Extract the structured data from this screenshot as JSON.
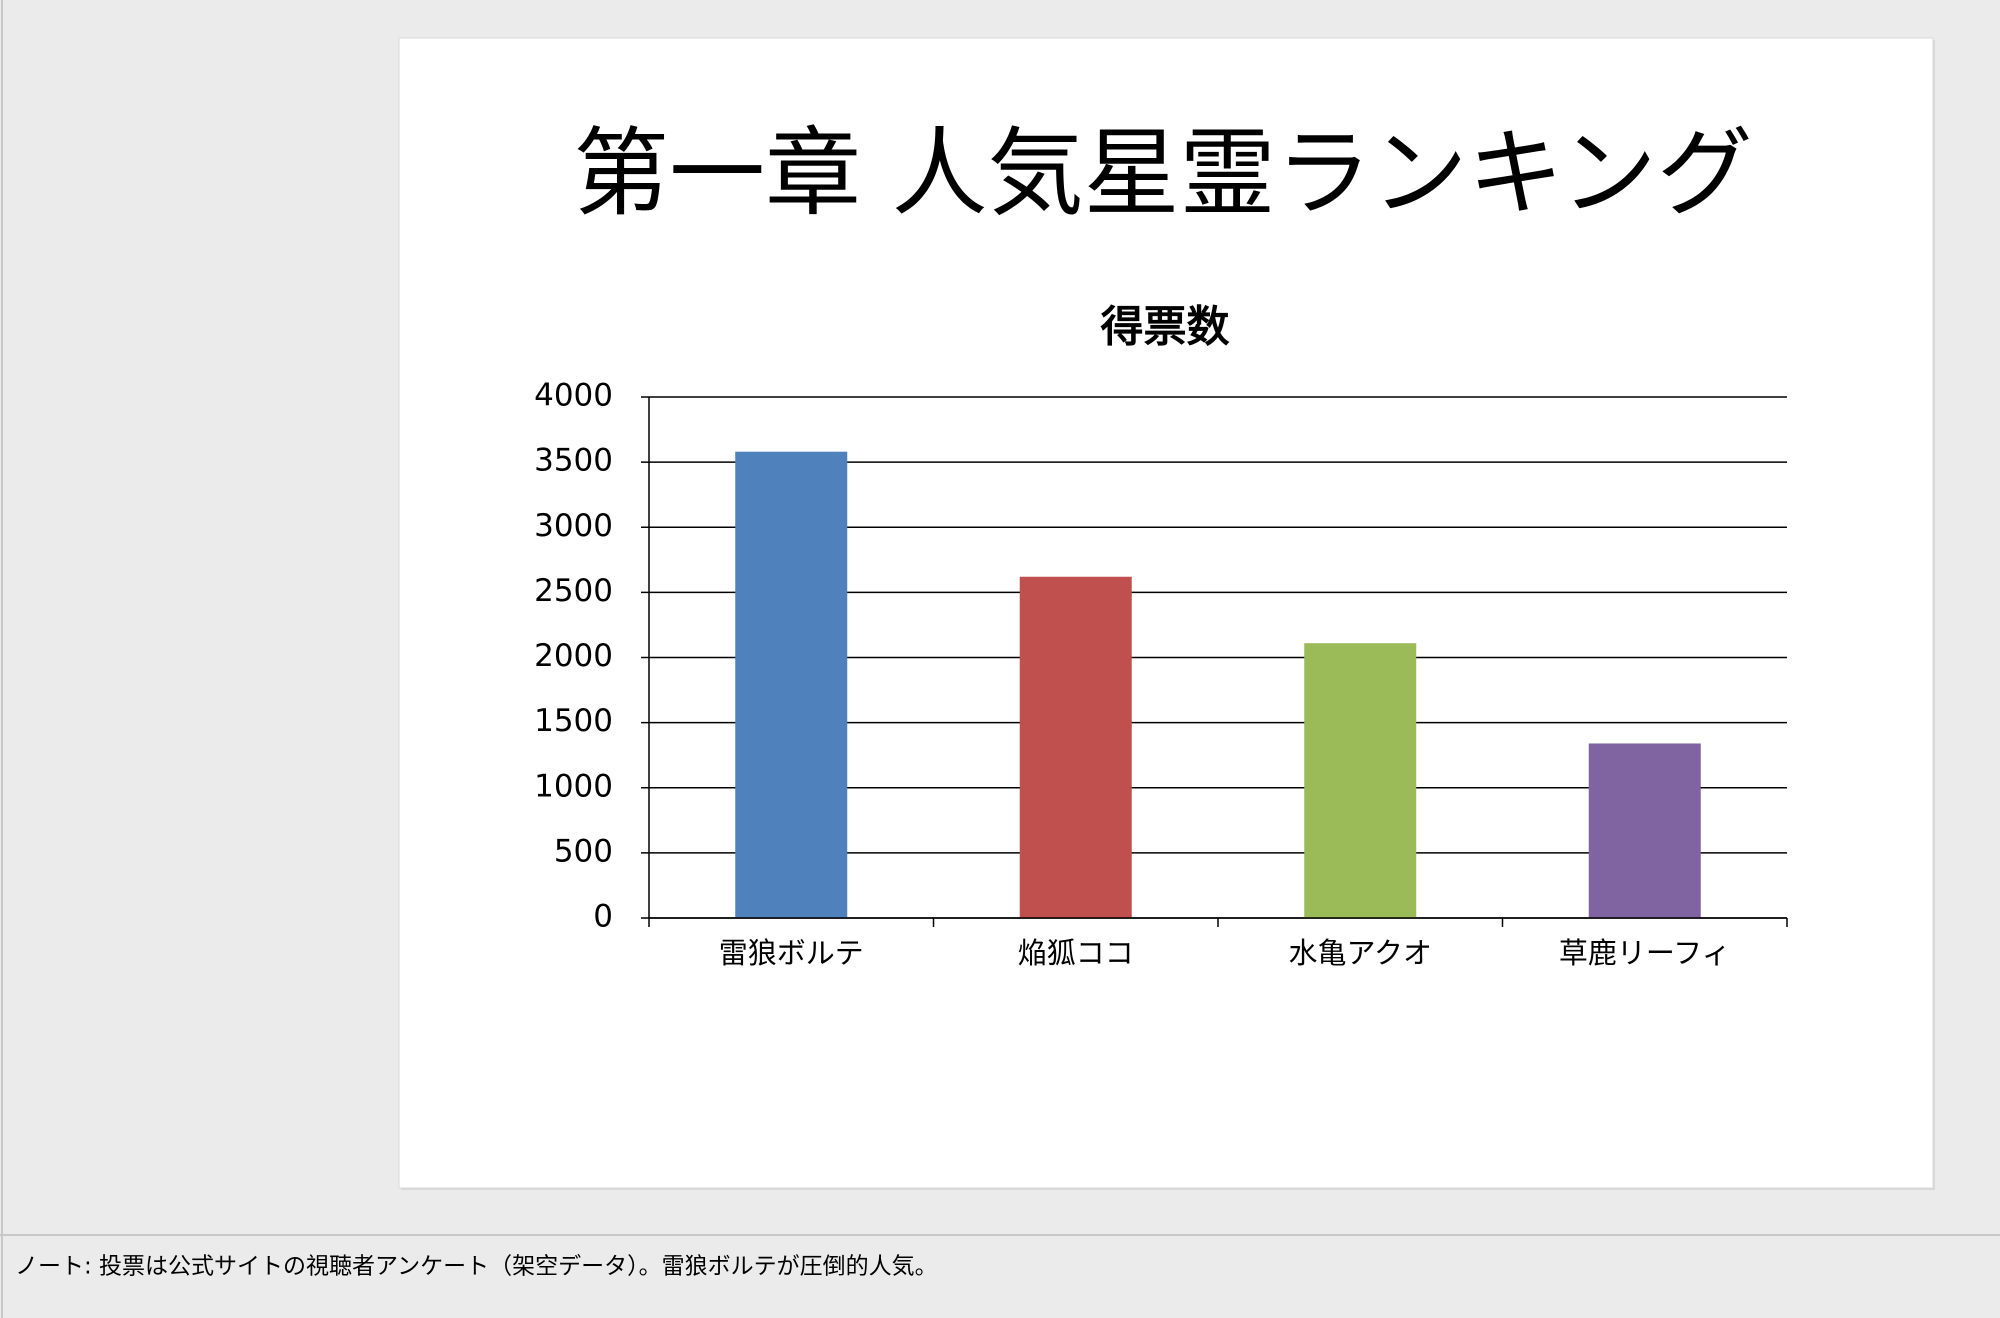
{
  "slide": {
    "title": "第一章 人気星霊ランキング"
  },
  "chart_data": {
    "type": "bar",
    "title": "得票数",
    "categories": [
      "雷狼ボルテ",
      "焔狐ココ",
      "水亀アクオ",
      "草鹿リーフィ"
    ],
    "values": [
      3580,
      2620,
      2110,
      1340
    ],
    "colors": [
      "#4f81bd",
      "#c0504d",
      "#9bbb59",
      "#8064a2"
    ],
    "ylim": [
      0,
      4000
    ],
    "yticks": [
      0,
      500,
      1000,
      1500,
      2000,
      2500,
      3000,
      3500,
      4000
    ],
    "grid": true
  },
  "notes": {
    "text": "ノート: 投票は公式サイトの視聴者アンケート（架空データ）。雷狼ボルテが圧倒的人気。"
  }
}
